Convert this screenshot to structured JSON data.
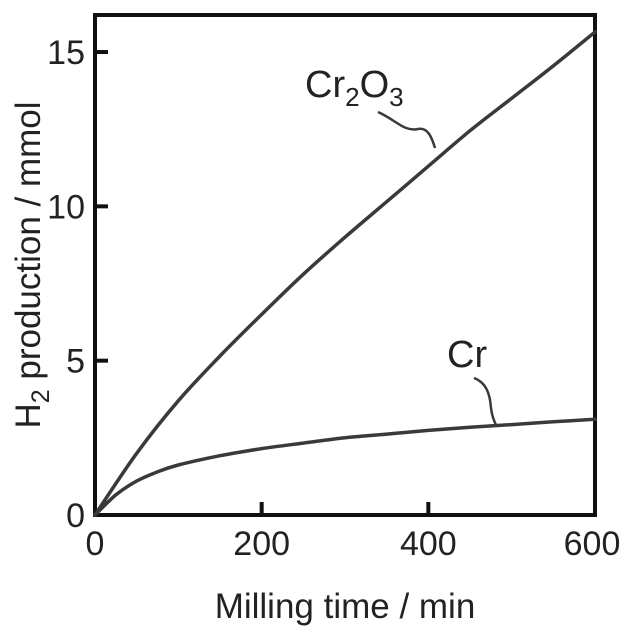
{
  "chart_data": {
    "type": "line",
    "xlabel": "Milling time / min",
    "ylabel": {
      "prefix": "H",
      "sub": "2",
      "rest": " production / mmol"
    },
    "xlim": [
      0,
      600
    ],
    "ylim": [
      0,
      16.2
    ],
    "xticks": [
      0,
      200,
      400,
      600
    ],
    "yticks": [
      0,
      5,
      10,
      15
    ],
    "grid": false,
    "legend": "none",
    "colors": {
      "line": "#3a3a3a",
      "axis": "#111111",
      "text": "#222222"
    },
    "series": [
      {
        "name": "Cr2O3",
        "label": {
          "parts": [
            "Cr",
            "2",
            "O",
            "3"
          ]
        },
        "x": [
          0,
          50,
          100,
          150,
          200,
          250,
          300,
          350,
          400,
          450,
          500,
          550,
          600
        ],
        "y": [
          0,
          2.0,
          3.7,
          5.15,
          6.5,
          7.8,
          9.0,
          10.15,
          11.3,
          12.45,
          13.5,
          14.55,
          15.65
        ]
      },
      {
        "name": "Cr",
        "label": {
          "parts": [
            "Cr"
          ]
        },
        "x": [
          0,
          25,
          50,
          75,
          100,
          150,
          200,
          250,
          300,
          350,
          400,
          450,
          500,
          550,
          600
        ],
        "y": [
          0,
          0.65,
          1.1,
          1.4,
          1.62,
          1.92,
          2.15,
          2.33,
          2.5,
          2.62,
          2.74,
          2.84,
          2.93,
          3.02,
          3.1
        ]
      }
    ]
  }
}
